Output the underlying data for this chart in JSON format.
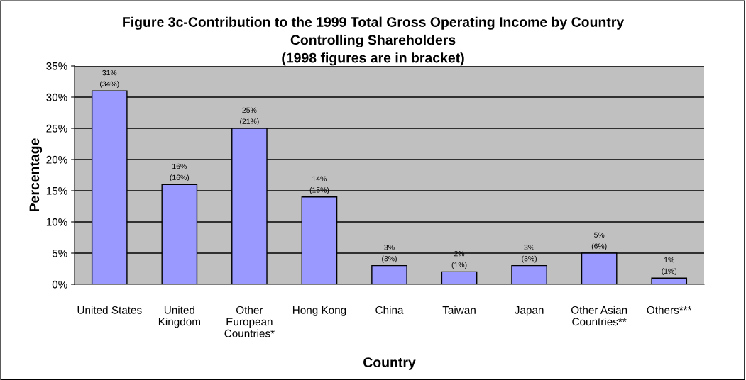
{
  "chart_data": {
    "type": "bar",
    "title": "Figure 3c-Contribution to the 1999 Total Gross Operating Income by Country\nControlling Shareholders\n(1998 figures are in bracket)",
    "xlabel": "Country",
    "ylabel": "Percentage",
    "categories": [
      "United States",
      "United\nKingdom",
      "Other\nEuropean\nCountries*",
      "Hong Kong",
      "China",
      "Taiwan",
      "Japan",
      "Other Asian\nCountries**",
      "Others***"
    ],
    "values": [
      31,
      16,
      25,
      14,
      3,
      2,
      3,
      5,
      1
    ],
    "value_labels": [
      "31%\n(34%)",
      "16%\n(16%)",
      "25%\n(21%)",
      "14%\n(15%)",
      "3%\n(3%)",
      "2%\n(1%)",
      "3%\n(3%)",
      "5%\n(6%)",
      "1%\n(1%)"
    ],
    "color": "#9999ff",
    "ylim": [
      0,
      35
    ],
    "yticks": [
      {
        "value": 0,
        "label": "0%"
      },
      {
        "value": 5,
        "label": "5%"
      },
      {
        "value": 10,
        "label": "10%"
      },
      {
        "value": 15,
        "label": "15%"
      },
      {
        "value": 20,
        "label": "20%"
      },
      {
        "value": 25,
        "label": "25%"
      },
      {
        "value": 30,
        "label": "30%"
      },
      {
        "value": 35,
        "label": "35%"
      }
    ],
    "grid": "y",
    "legend": false
  }
}
